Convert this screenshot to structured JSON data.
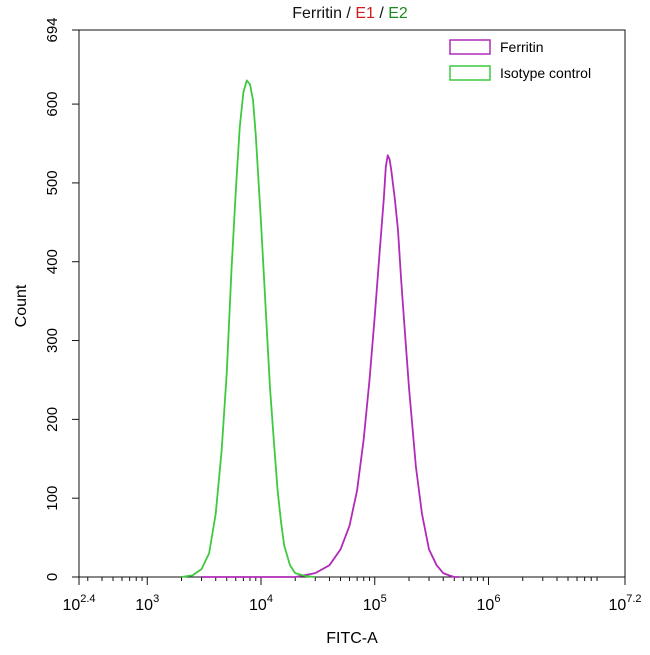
{
  "chart_data": {
    "type": "line",
    "title_parts": [
      {
        "text": "Ferritin",
        "color": "#111111"
      },
      {
        "text": " / ",
        "color": "#111111"
      },
      {
        "text": "E1",
        "color": "#cc1e1e"
      },
      {
        "text": " / ",
        "color": "#111111"
      },
      {
        "text": "E2",
        "color": "#1f8a1f"
      }
    ],
    "xlabel": "FITC-A",
    "ylabel": "Count",
    "x_scale": "log",
    "xlim": [
      251.19,
      15848932
    ],
    "ylim": [
      0,
      694
    ],
    "x_ticks": [
      {
        "base": "10",
        "exp": "2.4",
        "value": 251.19
      },
      {
        "base": "10",
        "exp": "3",
        "value": 1000
      },
      {
        "base": "10",
        "exp": "4",
        "value": 10000
      },
      {
        "base": "10",
        "exp": "5",
        "value": 100000
      },
      {
        "base": "10",
        "exp": "6",
        "value": 1000000
      },
      {
        "base": "10",
        "exp": "7.2",
        "value": 15848932
      }
    ],
    "y_ticks": [
      0,
      100,
      200,
      300,
      400,
      500,
      600,
      694
    ],
    "grid": false,
    "legend": {
      "placement": "top-right"
    },
    "series": [
      {
        "name": "Ferritin",
        "color": "#b02bb8",
        "x": [
          3000,
          20000,
          30000,
          40000,
          50000,
          60000,
          70000,
          80000,
          90000,
          100000,
          110000,
          120000,
          125000,
          130000,
          135000,
          140000,
          150000,
          160000,
          170000,
          180000,
          200000,
          230000,
          260000,
          300000,
          350000,
          400000,
          450000,
          500000,
          550000
        ],
        "y": [
          0,
          0,
          5,
          15,
          35,
          65,
          110,
          175,
          250,
          330,
          410,
          480,
          520,
          535,
          530,
          515,
          480,
          440,
          380,
          330,
          240,
          140,
          80,
          35,
          15,
          5,
          2,
          0,
          0
        ]
      },
      {
        "name": "Isotype control",
        "color": "#3ec93e",
        "x": [
          2000,
          2500,
          3000,
          3500,
          4000,
          4500,
          5000,
          5500,
          6000,
          6500,
          7000,
          7500,
          8000,
          8500,
          9000,
          10000,
          11000,
          12000,
          13000,
          14000,
          15000,
          16000,
          18000,
          20000,
          25000,
          30000
        ],
        "y": [
          0,
          2,
          10,
          30,
          80,
          160,
          260,
          390,
          490,
          570,
          615,
          630,
          625,
          605,
          560,
          450,
          340,
          240,
          170,
          110,
          70,
          40,
          15,
          5,
          1,
          0
        ]
      }
    ]
  }
}
